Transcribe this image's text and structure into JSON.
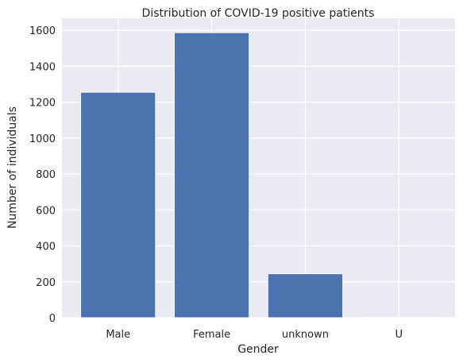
{
  "chart_data": {
    "type": "bar",
    "title": "Distribution of COVID-19 positive patients",
    "xlabel": "Gender",
    "ylabel": "Number of individuals",
    "categories": [
      "Male",
      "Female",
      "unknown",
      "U"
    ],
    "values": [
      1255,
      1587,
      245,
      2
    ],
    "ylim": [
      0,
      1667
    ],
    "yticks": [
      0,
      200,
      400,
      600,
      800,
      1000,
      1200,
      1400,
      1600
    ],
    "grid": true,
    "colors": {
      "bar": "#4C72B0",
      "plot_background": "#EAEAF2",
      "grid": "#FFFFFF"
    }
  }
}
